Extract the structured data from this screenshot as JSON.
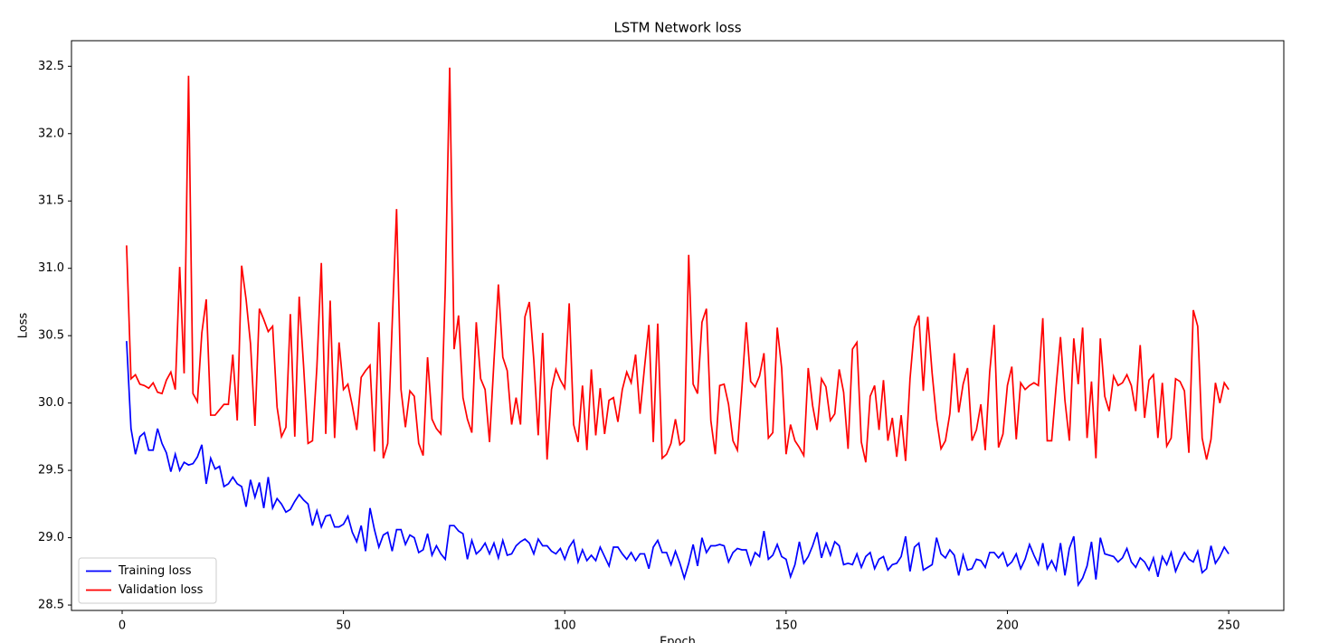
{
  "chart_data": {
    "type": "line",
    "title": "LSTM Network loss",
    "x_label": "Epoch",
    "y_label": "Loss",
    "x": [
      1,
      2,
      3,
      4,
      5,
      6,
      7,
      8,
      9,
      10,
      11,
      12,
      13,
      14,
      15,
      16,
      17,
      18,
      19,
      20,
      21,
      22,
      23,
      24,
      25,
      26,
      27,
      28,
      29,
      30,
      31,
      32,
      33,
      34,
      35,
      36,
      37,
      38,
      39,
      40,
      41,
      42,
      43,
      44,
      45,
      46,
      47,
      48,
      49,
      50,
      51,
      52,
      53,
      54,
      55,
      56,
      57,
      58,
      59,
      60,
      61,
      62,
      63,
      64,
      65,
      66,
      67,
      68,
      69,
      70,
      71,
      72,
      73,
      74,
      75,
      76,
      77,
      78,
      79,
      80,
      81,
      82,
      83,
      84,
      85,
      86,
      87,
      88,
      89,
      90,
      91,
      92,
      93,
      94,
      95,
      96,
      97,
      98,
      99,
      100,
      101,
      102,
      103,
      104,
      105,
      106,
      107,
      108,
      109,
      110,
      111,
      112,
      113,
      114,
      115,
      116,
      117,
      118,
      119,
      120,
      121,
      122,
      123,
      124,
      125,
      126,
      127,
      128,
      129,
      130,
      131,
      132,
      133,
      134,
      135,
      136,
      137,
      138,
      139,
      140,
      141,
      142,
      143,
      144,
      145,
      146,
      147,
      148,
      149,
      150,
      151,
      152,
      153,
      154,
      155,
      156,
      157,
      158,
      159,
      160,
      161,
      162,
      163,
      164,
      165,
      166,
      167,
      168,
      169,
      170,
      171,
      172,
      173,
      174,
      175,
      176,
      177,
      178,
      179,
      180,
      181,
      182,
      183,
      184,
      185,
      186,
      187,
      188,
      189,
      190,
      191,
      192,
      193,
      194,
      195,
      196,
      197,
      198,
      199,
      200,
      201,
      202,
      203,
      204,
      205,
      206,
      207,
      208,
      209,
      210,
      211,
      212,
      213,
      214,
      215,
      216,
      217,
      218,
      219,
      220,
      221,
      222,
      223,
      224,
      225,
      226,
      227,
      228,
      229,
      230,
      231,
      232,
      233,
      234,
      235,
      236,
      237,
      238,
      239,
      240,
      241,
      242,
      243,
      244,
      245,
      246,
      247,
      248,
      249,
      250
    ],
    "series": [
      {
        "name": "Training loss",
        "color": "#0000ff",
        "values": [
          30.46,
          29.81,
          29.62,
          29.75,
          29.78,
          29.65,
          29.65,
          29.81,
          29.7,
          29.63,
          29.49,
          29.62,
          29.5,
          29.56,
          29.54,
          29.55,
          29.6,
          29.69,
          29.4,
          29.59,
          29.51,
          29.53,
          29.38,
          29.4,
          29.45,
          29.4,
          29.38,
          29.23,
          29.43,
          29.3,
          29.41,
          29.22,
          29.45,
          29.22,
          29.29,
          29.25,
          29.19,
          29.21,
          29.27,
          29.32,
          29.28,
          29.25,
          29.09,
          29.2,
          29.08,
          29.16,
          29.17,
          29.08,
          29.08,
          29.1,
          29.16,
          29.04,
          28.97,
          29.09,
          28.9,
          29.22,
          29.06,
          28.93,
          29.02,
          29.04,
          28.9,
          29.06,
          29.06,
          28.95,
          29.02,
          29.0,
          28.89,
          28.91,
          29.03,
          28.87,
          28.94,
          28.88,
          28.84,
          29.09,
          29.09,
          29.05,
          29.03,
          28.84,
          28.98,
          28.88,
          28.91,
          28.96,
          28.88,
          28.96,
          28.85,
          28.98,
          28.87,
          28.88,
          28.94,
          28.97,
          28.99,
          28.96,
          28.88,
          28.99,
          28.94,
          28.94,
          28.9,
          28.88,
          28.92,
          28.84,
          28.93,
          28.98,
          28.82,
          28.91,
          28.83,
          28.87,
          28.83,
          28.93,
          28.86,
          28.79,
          28.93,
          28.93,
          28.88,
          28.84,
          28.89,
          28.83,
          28.88,
          28.88,
          28.77,
          28.93,
          28.98,
          28.89,
          28.89,
          28.8,
          28.9,
          28.81,
          28.7,
          28.81,
          28.95,
          28.79,
          29.0,
          28.89,
          28.94,
          28.94,
          28.95,
          28.94,
          28.82,
          28.89,
          28.92,
          28.91,
          28.91,
          28.8,
          28.89,
          28.86,
          29.05,
          28.84,
          28.87,
          28.95,
          28.86,
          28.84,
          28.71,
          28.8,
          28.97,
          28.81,
          28.86,
          28.94,
          29.04,
          28.85,
          28.96,
          28.87,
          28.97,
          28.94,
          28.8,
          28.81,
          28.8,
          28.88,
          28.78,
          28.86,
          28.89,
          28.77,
          28.84,
          28.86,
          28.76,
          28.8,
          28.81,
          28.86,
          29.01,
          28.75,
          28.93,
          28.96,
          28.76,
          28.78,
          28.8,
          29.0,
          28.88,
          28.85,
          28.91,
          28.87,
          28.72,
          28.87,
          28.76,
          28.77,
          28.84,
          28.83,
          28.78,
          28.89,
          28.89,
          28.85,
          28.89,
          28.79,
          28.82,
          28.88,
          28.77,
          28.84,
          28.95,
          28.87,
          28.8,
          28.96,
          28.77,
          28.83,
          28.76,
          28.96,
          28.72,
          28.92,
          29.01,
          28.65,
          28.7,
          28.79,
          28.97,
          28.69,
          29.0,
          28.88,
          28.87,
          28.86,
          28.82,
          28.85,
          28.92,
          28.82,
          28.78,
          28.85,
          28.82,
          28.76,
          28.85,
          28.71,
          28.86,
          28.8,
          28.89,
          28.75,
          28.83,
          28.89,
          28.84,
          28.82,
          28.9,
          28.74,
          28.77,
          28.94,
          28.81,
          28.86,
          28.93,
          28.88
        ]
      },
      {
        "name": "Validation loss",
        "color": "#ff0000",
        "values": [
          31.17,
          30.18,
          30.21,
          30.14,
          30.13,
          30.11,
          30.15,
          30.08,
          30.07,
          30.17,
          30.23,
          30.1,
          31.01,
          30.22,
          32.43,
          30.07,
          30.01,
          30.52,
          30.77,
          29.91,
          29.91,
          29.95,
          29.99,
          29.99,
          30.36,
          29.87,
          31.02,
          30.77,
          30.44,
          29.83,
          30.7,
          30.62,
          30.53,
          30.57,
          29.97,
          29.75,
          29.82,
          30.66,
          29.75,
          30.79,
          30.27,
          29.7,
          29.72,
          30.27,
          31.04,
          29.77,
          30.76,
          29.74,
          30.45,
          30.1,
          30.14,
          29.98,
          29.8,
          30.19,
          30.24,
          30.28,
          29.64,
          30.6,
          29.59,
          29.7,
          30.58,
          31.44,
          30.1,
          29.82,
          30.09,
          30.05,
          29.7,
          29.61,
          30.34,
          29.88,
          29.81,
          29.77,
          30.85,
          32.49,
          30.4,
          30.65,
          30.04,
          29.88,
          29.78,
          30.6,
          30.18,
          30.1,
          29.71,
          30.31,
          30.88,
          30.34,
          30.24,
          29.84,
          30.04,
          29.84,
          30.64,
          30.75,
          30.32,
          29.76,
          30.52,
          29.58,
          30.1,
          30.25,
          30.17,
          30.11,
          30.74,
          29.84,
          29.71,
          30.13,
          29.65,
          30.25,
          29.76,
          30.11,
          29.77,
          30.02,
          30.04,
          29.86,
          30.1,
          30.23,
          30.15,
          30.36,
          29.92,
          30.26,
          30.58,
          29.71,
          30.59,
          29.59,
          29.62,
          29.7,
          29.88,
          29.69,
          29.72,
          31.1,
          30.14,
          30.07,
          30.6,
          30.7,
          29.87,
          29.62,
          30.13,
          30.14,
          29.99,
          29.72,
          29.65,
          30.1,
          30.6,
          30.16,
          30.12,
          30.2,
          30.37,
          29.74,
          29.78,
          30.56,
          30.26,
          29.62,
          29.84,
          29.72,
          29.67,
          29.61,
          30.26,
          29.98,
          29.8,
          30.18,
          30.12,
          29.87,
          29.92,
          30.25,
          30.08,
          29.66,
          30.4,
          30.45,
          29.71,
          29.56,
          30.05,
          30.13,
          29.8,
          30.17,
          29.72,
          29.89,
          29.6,
          29.91,
          29.57,
          30.18,
          30.56,
          30.65,
          30.09,
          30.64,
          30.22,
          29.88,
          29.66,
          29.72,
          29.92,
          30.37,
          29.93,
          30.14,
          30.26,
          29.72,
          29.8,
          29.99,
          29.65,
          30.23,
          30.58,
          29.67,
          29.77,
          30.13,
          30.27,
          29.73,
          30.15,
          30.1,
          30.13,
          30.15,
          30.13,
          30.63,
          29.72,
          29.72,
          30.12,
          30.49,
          30.02,
          29.72,
          30.48,
          30.14,
          30.56,
          29.74,
          30.16,
          29.59,
          30.48,
          30.05,
          29.94,
          30.2,
          30.13,
          30.15,
          30.21,
          30.13,
          29.94,
          30.43,
          29.89,
          30.17,
          30.21,
          29.74,
          30.15,
          29.68,
          29.74,
          30.18,
          30.16,
          30.09,
          29.63,
          30.69,
          30.57,
          29.74,
          29.58,
          29.73,
          30.15,
          30.0,
          30.15,
          30.1
        ]
      }
    ],
    "xlim": [
      -11.45,
      262.45
    ],
    "xticks": [
      0,
      50,
      100,
      150,
      200,
      250
    ],
    "ylim": [
      28.46,
      32.69
    ],
    "yticks": [
      28.5,
      {
        "value": 29,
        "label": "29.0"
      },
      29.5,
      {
        "value": 30,
        "label": "30.0"
      },
      30.5,
      {
        "value": 31,
        "label": "31.0"
      },
      31.5,
      {
        "value": 32,
        "label": "32.0"
      },
      32.5
    ],
    "legend": "lower left",
    "grid": false
  }
}
